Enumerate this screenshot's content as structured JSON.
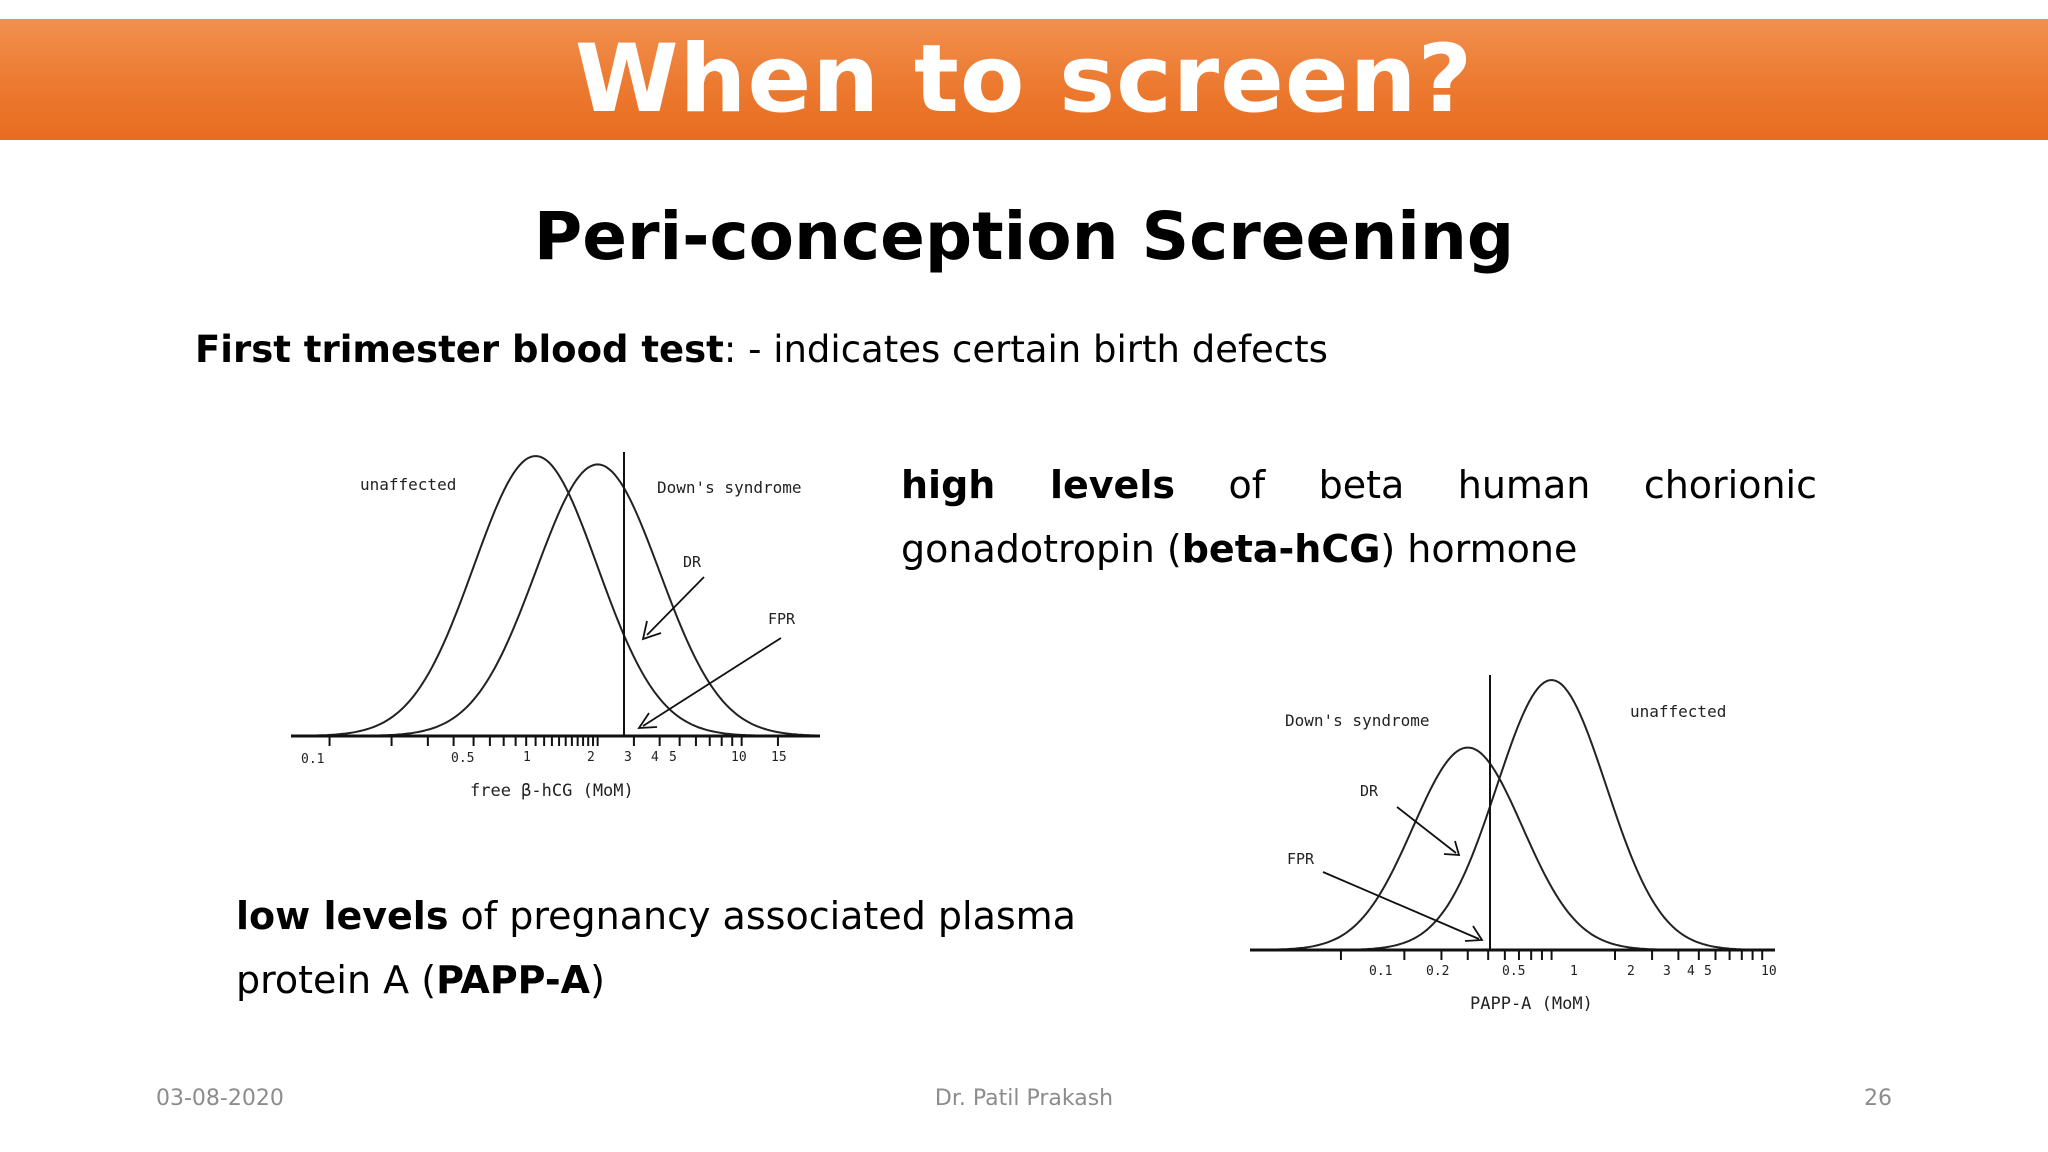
{
  "slide": {
    "title": "When to screen?",
    "subtitle": "Peri-conception Screening",
    "line1": {
      "bold": "First trimester blood test",
      "rest": ":  - indicates certain birth defects"
    },
    "hcg_text": {
      "bold1": "high  levels",
      "part1": "  of  beta  human  chorionic  gonadotropin (",
      "bold2": "beta-hCG",
      "part2": ") hormone"
    },
    "papp_text": {
      "bold1": "low levels",
      "part1": " of pregnancy associated plasma protein A (",
      "bold2": "PAPP-A",
      "part2": ")"
    }
  },
  "footer": {
    "date": "03-08-2020",
    "author": "Dr. Patil Prakash",
    "page": "26"
  },
  "chart_data": [
    {
      "type": "line",
      "xlabel": "free β-hCG (MoM)",
      "x_scale": "log",
      "xlim": [
        0.1,
        15
      ],
      "x_tick_labels": [
        "0.1",
        "0.5",
        "1",
        "2",
        "3",
        "4",
        "5",
        "10",
        "15"
      ],
      "series": [
        {
          "name": "unaffected",
          "shape": "normal",
          "median": 1.0,
          "peak_rel": 1.0
        },
        {
          "name": "Down's syndrome",
          "shape": "normal",
          "median": 2.0,
          "peak_rel": 0.97
        }
      ],
      "cutoff": 3,
      "annotations": [
        "DR",
        "FPR"
      ]
    },
    {
      "type": "line",
      "xlabel": "PAPP-A (MoM)",
      "x_scale": "log",
      "xlim": [
        0.05,
        10
      ],
      "x_tick_labels": [
        "0.1",
        "0.2",
        "0.5",
        "1",
        "2",
        "3",
        "4",
        "5",
        "10"
      ],
      "series": [
        {
          "name": "Down's syndrome",
          "shape": "normal",
          "median": 0.4,
          "peak_rel": 0.75
        },
        {
          "name": "unaffected",
          "shape": "normal",
          "median": 1.0,
          "peak_rel": 1.0
        }
      ],
      "cutoff": 0.35,
      "annotations": [
        "DR",
        "FPR"
      ]
    }
  ]
}
